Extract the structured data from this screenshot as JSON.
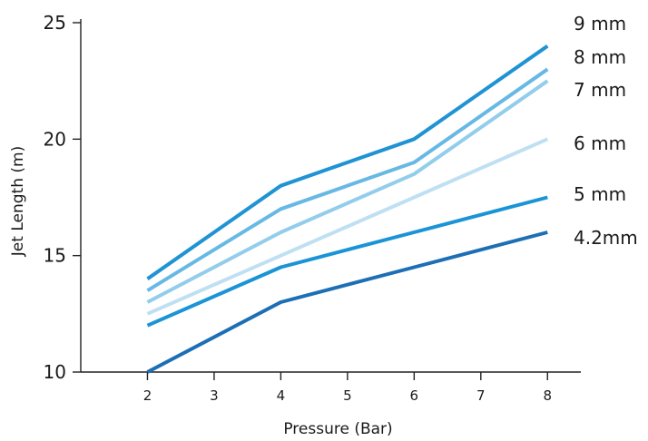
{
  "chart_data": {
    "type": "line",
    "title": "",
    "xlabel": "Pressure (Bar)",
    "ylabel": "Jet Length (m)",
    "xlim": [
      1.0,
      8.5
    ],
    "ylim": [
      10,
      25
    ],
    "x_ticks": [
      2,
      3,
      4,
      5,
      6,
      7,
      8
    ],
    "y_ticks": [
      10,
      15,
      20,
      25
    ],
    "x": [
      2,
      4,
      6,
      8
    ],
    "legend": "labels at line ends (right)",
    "grid": false,
    "series": [
      {
        "name": "9 mm",
        "values": [
          14.0,
          18.0,
          20.0,
          24.0
        ],
        "color": "#1f93d3"
      },
      {
        "name": "8 mm",
        "values": [
          13.5,
          17.0,
          19.0,
          23.0
        ],
        "color": "#67b9e4"
      },
      {
        "name": "7 mm",
        "values": [
          13.0,
          16.0,
          18.5,
          22.5
        ],
        "color": "#92cdeb"
      },
      {
        "name": "6 mm",
        "values": [
          12.5,
          15.0,
          17.5,
          20.0
        ],
        "color": "#bfe0f2"
      },
      {
        "name": "5 mm",
        "values": [
          12.0,
          14.5,
          16.0,
          17.5
        ],
        "color": "#1b94d6"
      },
      {
        "name": "4.2mm",
        "values": [
          10.0,
          13.0,
          14.5,
          16.0
        ],
        "color": "#1d6fb5"
      }
    ]
  }
}
